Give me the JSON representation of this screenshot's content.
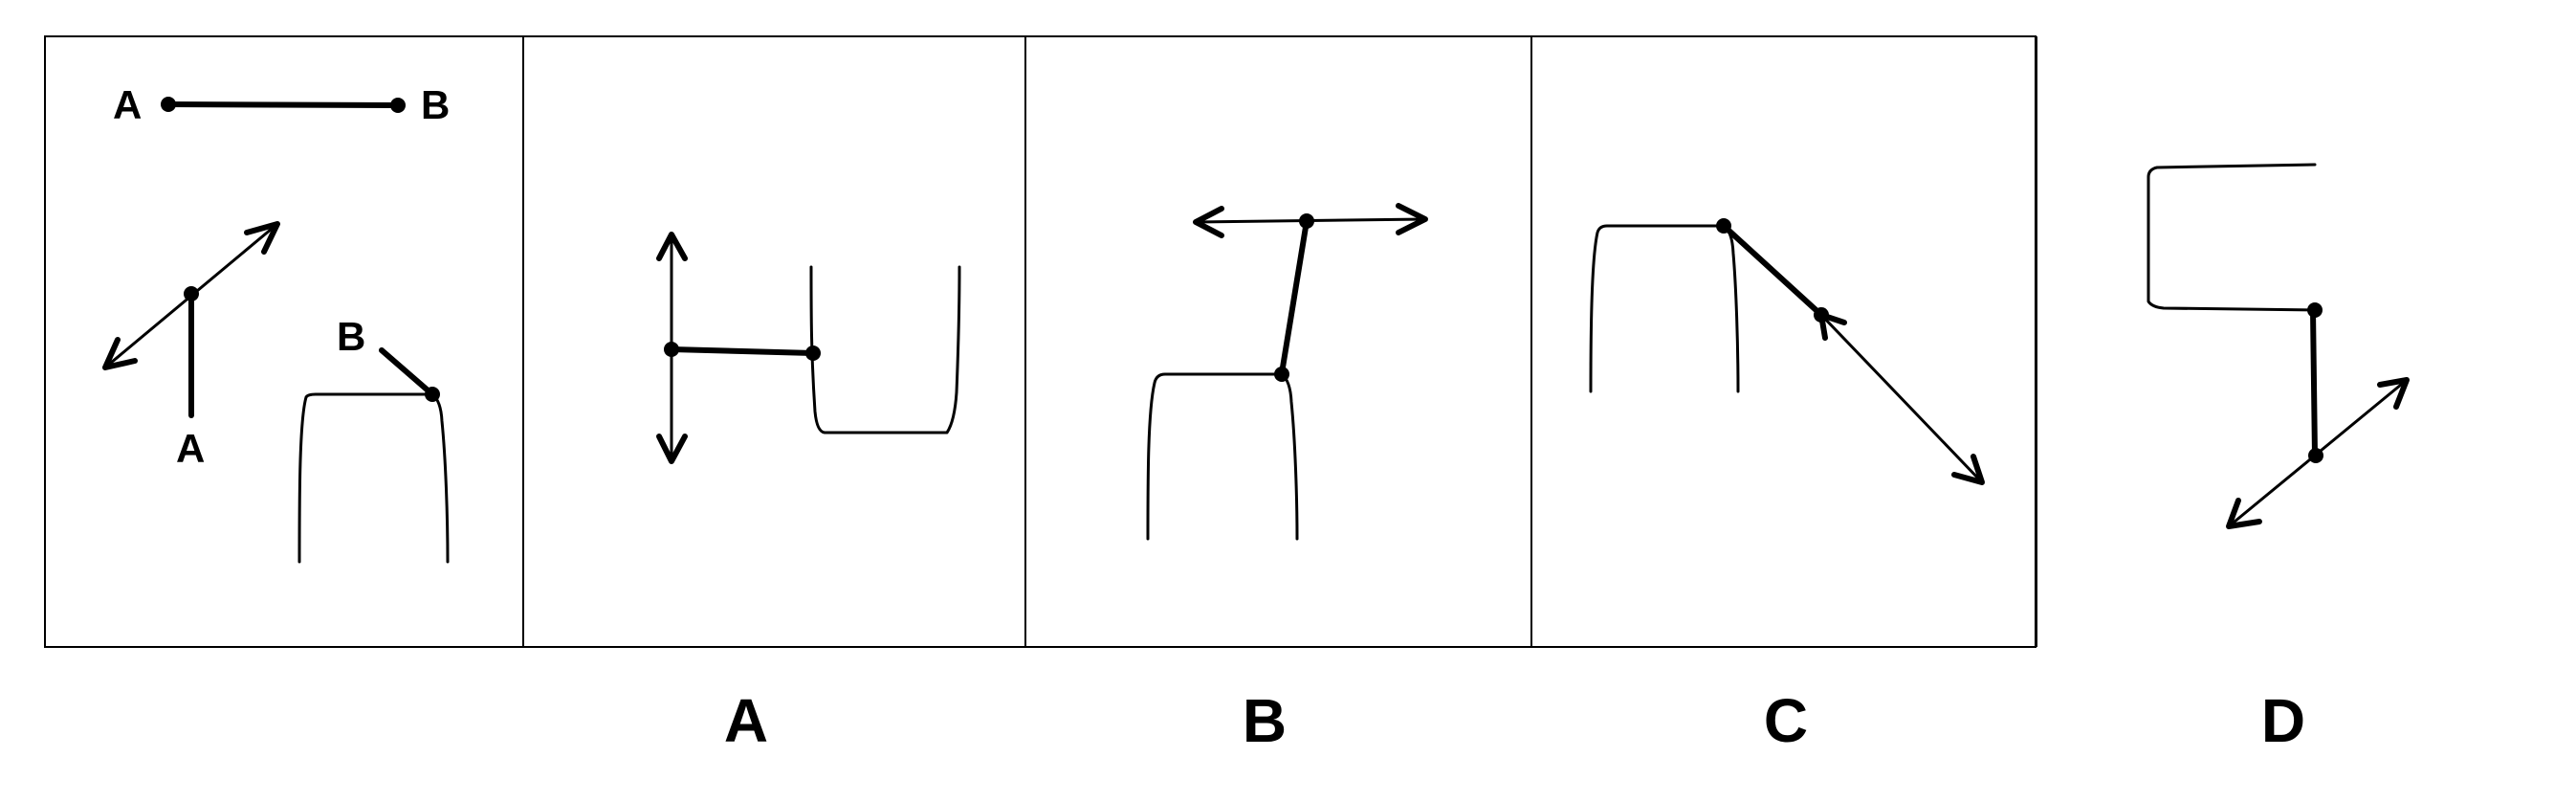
{
  "question": {
    "point_labels": {
      "segment_start": "A",
      "segment_end": "B",
      "figure_a": "A",
      "figure_b": "B"
    }
  },
  "options": [
    {
      "label": "A"
    },
    {
      "label": "B"
    },
    {
      "label": "C"
    },
    {
      "label": "D"
    }
  ]
}
